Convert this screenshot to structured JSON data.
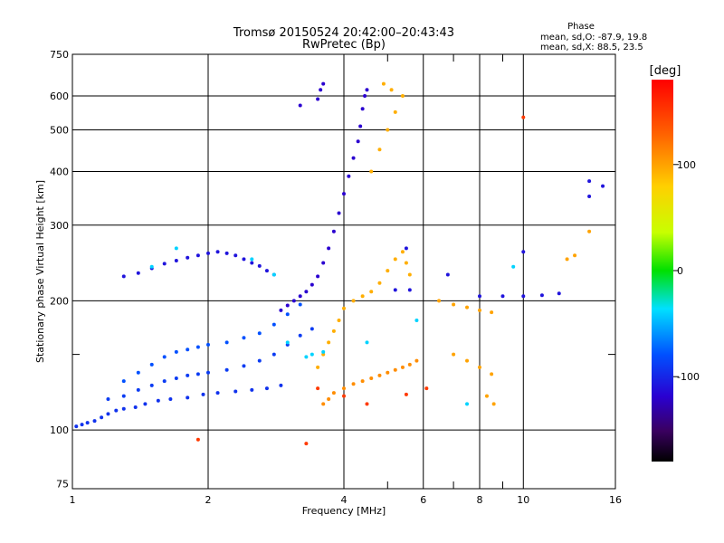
{
  "chart_data": {
    "type": "scatter",
    "title": "Tromsø 20150524 20:42:00–20:43:43",
    "subtitle": "RwPretec (Bp)",
    "xlabel": "Frequency [MHz]",
    "ylabel": "Stationary phase Virtual Height [km]",
    "x_scale": "log",
    "y_scale": "log",
    "xlim": [
      1,
      16
    ],
    "ylim": [
      73,
      750
    ],
    "x_ticks": [
      1,
      2,
      4,
      6,
      8,
      10,
      16
    ],
    "x_tick_labels": [
      "1",
      "2",
      "4",
      "6",
      "8",
      "10",
      "16"
    ],
    "x_minor_ticks": [
      5,
      7,
      9
    ],
    "y_ticks": [
      75,
      100,
      200,
      300,
      400,
      500,
      600,
      750
    ],
    "y_tick_labels": [
      "75",
      "100",
      "200",
      "300",
      "400",
      "500",
      "600",
      "750"
    ],
    "y_minor_ticks": [
      150
    ],
    "grid": true,
    "stats": {
      "heading": "Phase",
      "line_o": "mean, sd,O: -87.9, 19.8",
      "line_x": "mean, sd,X:  88.5, 23.5"
    },
    "colorbar": {
      "label": "[deg]",
      "min": -180,
      "max": 180,
      "ticks": [
        100,
        0,
        -100
      ],
      "tick_labels": [
        "100",
        "0",
        "-100"
      ],
      "colormap": "rainbow"
    },
    "series": [
      {
        "color_phase": -95,
        "points": [
          [
            1.02,
            102
          ],
          [
            1.05,
            103
          ],
          [
            1.08,
            104
          ],
          [
            1.12,
            105
          ],
          [
            1.16,
            107
          ],
          [
            1.2,
            109
          ],
          [
            1.25,
            111
          ],
          [
            1.3,
            112
          ],
          [
            1.38,
            113
          ],
          [
            1.45,
            115
          ],
          [
            1.55,
            117
          ],
          [
            1.65,
            118
          ],
          [
            1.8,
            119
          ],
          [
            1.95,
            121
          ],
          [
            2.1,
            122
          ],
          [
            2.3,
            123
          ],
          [
            2.5,
            124
          ],
          [
            2.7,
            125
          ],
          [
            2.9,
            127
          ]
        ]
      },
      {
        "color_phase": -90,
        "points": [
          [
            1.2,
            118
          ],
          [
            1.3,
            120
          ],
          [
            1.4,
            124
          ],
          [
            1.5,
            127
          ],
          [
            1.6,
            130
          ],
          [
            1.7,
            132
          ],
          [
            1.8,
            134
          ],
          [
            1.9,
            135
          ],
          [
            2.0,
            136
          ],
          [
            2.2,
            138
          ],
          [
            2.4,
            141
          ],
          [
            2.6,
            145
          ],
          [
            2.8,
            150
          ],
          [
            3.0,
            158
          ],
          [
            3.2,
            166
          ],
          [
            3.4,
            172
          ]
        ]
      },
      {
        "color_phase": -80,
        "points": [
          [
            1.3,
            130
          ],
          [
            1.4,
            136
          ],
          [
            1.5,
            142
          ],
          [
            1.6,
            148
          ],
          [
            1.7,
            152
          ],
          [
            1.8,
            154
          ],
          [
            1.9,
            156
          ],
          [
            2.0,
            158
          ],
          [
            2.2,
            160
          ],
          [
            2.4,
            164
          ],
          [
            2.6,
            168
          ],
          [
            2.8,
            176
          ],
          [
            3.0,
            186
          ],
          [
            3.2,
            196
          ]
        ]
      },
      {
        "color_phase": -110,
        "points": [
          [
            1.3,
            228
          ],
          [
            1.4,
            232
          ],
          [
            1.5,
            238
          ],
          [
            1.6,
            244
          ],
          [
            1.7,
            248
          ],
          [
            1.8,
            252
          ],
          [
            1.9,
            255
          ],
          [
            2.0,
            258
          ],
          [
            2.1,
            260
          ],
          [
            2.2,
            258
          ],
          [
            2.3,
            255
          ],
          [
            2.4,
            250
          ],
          [
            2.5,
            245
          ],
          [
            2.6,
            241
          ],
          [
            2.7,
            235
          ],
          [
            2.8,
            230
          ]
        ]
      },
      {
        "color_phase": -120,
        "points": [
          [
            2.9,
            190
          ],
          [
            3.0,
            195
          ],
          [
            3.1,
            200
          ],
          [
            3.2,
            205
          ],
          [
            3.3,
            210
          ],
          [
            3.4,
            218
          ],
          [
            3.5,
            228
          ],
          [
            3.6,
            245
          ],
          [
            3.7,
            265
          ],
          [
            3.8,
            290
          ],
          [
            3.9,
            320
          ],
          [
            4.0,
            355
          ],
          [
            4.1,
            390
          ],
          [
            4.2,
            430
          ],
          [
            4.3,
            470
          ],
          [
            4.35,
            510
          ],
          [
            4.4,
            560
          ],
          [
            4.45,
            600
          ],
          [
            4.5,
            620
          ],
          [
            3.5,
            590
          ],
          [
            3.55,
            620
          ],
          [
            3.6,
            640
          ],
          [
            3.2,
            570
          ]
        ]
      },
      {
        "color_phase": 95,
        "points": [
          [
            3.5,
            140
          ],
          [
            3.6,
            150
          ],
          [
            3.7,
            160
          ],
          [
            3.8,
            170
          ],
          [
            3.9,
            180
          ],
          [
            4.0,
            192
          ],
          [
            4.2,
            200
          ],
          [
            4.4,
            205
          ],
          [
            4.6,
            210
          ],
          [
            4.8,
            220
          ],
          [
            5.0,
            235
          ],
          [
            5.2,
            250
          ],
          [
            5.4,
            260
          ],
          [
            5.5,
            245
          ],
          [
            5.6,
            230
          ],
          [
            4.6,
            400
          ],
          [
            4.8,
            450
          ],
          [
            5.0,
            500
          ],
          [
            5.2,
            550
          ],
          [
            5.4,
            600
          ],
          [
            5.1,
            620
          ],
          [
            4.9,
            640
          ]
        ]
      },
      {
        "color_phase": 110,
        "points": [
          [
            3.6,
            115
          ],
          [
            3.7,
            118
          ],
          [
            3.8,
            122
          ],
          [
            4.0,
            125
          ],
          [
            4.2,
            128
          ],
          [
            4.4,
            130
          ],
          [
            4.6,
            132
          ],
          [
            4.8,
            134
          ],
          [
            5.0,
            136
          ],
          [
            5.2,
            138
          ],
          [
            5.4,
            140
          ],
          [
            5.6,
            142
          ],
          [
            5.8,
            145
          ]
        ]
      },
      {
        "color_phase": 100,
        "points": [
          [
            6.5,
            200
          ],
          [
            7.0,
            196
          ],
          [
            7.5,
            193
          ],
          [
            8.0,
            190
          ],
          [
            8.5,
            188
          ],
          [
            7.0,
            150
          ],
          [
            7.5,
            145
          ],
          [
            8.0,
            140
          ],
          [
            8.5,
            135
          ],
          [
            8.3,
            120
          ],
          [
            8.6,
            115
          ],
          [
            12.5,
            250
          ],
          [
            13.0,
            255
          ],
          [
            14.0,
            290
          ]
        ]
      },
      {
        "color_phase": -110,
        "points": [
          [
            8.0,
            205
          ],
          [
            9.0,
            205
          ],
          [
            10.0,
            205
          ],
          [
            11.0,
            206
          ],
          [
            12.0,
            208
          ],
          [
            10.0,
            260
          ],
          [
            14.0,
            350
          ],
          [
            15.0,
            370
          ],
          [
            14.0,
            380
          ],
          [
            5.5,
            265
          ],
          [
            5.6,
            212
          ],
          [
            5.2,
            212
          ],
          [
            6.8,
            230
          ]
        ]
      },
      {
        "color_phase": -40,
        "points": [
          [
            1.5,
            240
          ],
          [
            1.7,
            265
          ],
          [
            2.5,
            250
          ],
          [
            2.8,
            230
          ],
          [
            3.0,
            160
          ],
          [
            3.3,
            148
          ],
          [
            3.4,
            150
          ],
          [
            3.6,
            152
          ],
          [
            4.5,
            160
          ],
          [
            5.8,
            180
          ],
          [
            7.5,
            115
          ],
          [
            9.5,
            240
          ]
        ]
      },
      {
        "color_phase": 150,
        "points": [
          [
            3.5,
            125
          ],
          [
            4.0,
            120
          ],
          [
            4.5,
            115
          ],
          [
            5.5,
            121
          ],
          [
            6.1,
            125
          ],
          [
            10.0,
            535
          ],
          [
            1.9,
            95
          ],
          [
            3.3,
            93
          ]
        ]
      }
    ]
  }
}
